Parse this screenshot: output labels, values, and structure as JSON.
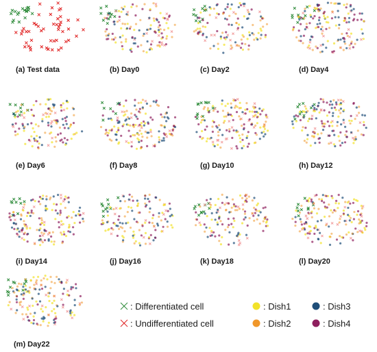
{
  "chart_data": {
    "type": "scatter",
    "panels": [
      {
        "caption": "(a) Test data"
      },
      {
        "caption": "(b) Day0"
      },
      {
        "caption": "(c) Day2"
      },
      {
        "caption": "(d) Day4"
      },
      {
        "caption": "(e) Day6"
      },
      {
        "caption": "(f) Day8"
      },
      {
        "caption": "(g) Day10"
      },
      {
        "caption": "(h) Day12"
      },
      {
        "caption": "(i) Day14"
      },
      {
        "caption": "(j) Day16"
      },
      {
        "caption": "(k) Day18"
      },
      {
        "caption": "(l) Day20"
      },
      {
        "caption": "(m) Day22"
      }
    ],
    "legend": {
      "cell_types": [
        {
          "label": ": Differentiated cell",
          "marker": "x",
          "color": "#2e8b3a"
        },
        {
          "label": ": Undifferentiated cell",
          "marker": "x",
          "color": "#e02020"
        }
      ],
      "dishes": [
        {
          "label": ": Dish1",
          "marker": "circle",
          "color": "#f2e22a"
        },
        {
          "label": ": Dish2",
          "marker": "circle",
          "color": "#f0972a"
        },
        {
          "label": ": Dish3",
          "marker": "circle",
          "color": "#1f4e79"
        },
        {
          "label": ": Dish4",
          "marker": "circle",
          "color": "#8e1f5e"
        }
      ]
    },
    "colors": {
      "differentiated": "#2e8b3a",
      "undifferentiated": "#e02020",
      "dish1": "#f2e22a",
      "dish2": "#f0972a",
      "dish3": "#1f4e79",
      "dish4": "#8e1f5e"
    }
  }
}
